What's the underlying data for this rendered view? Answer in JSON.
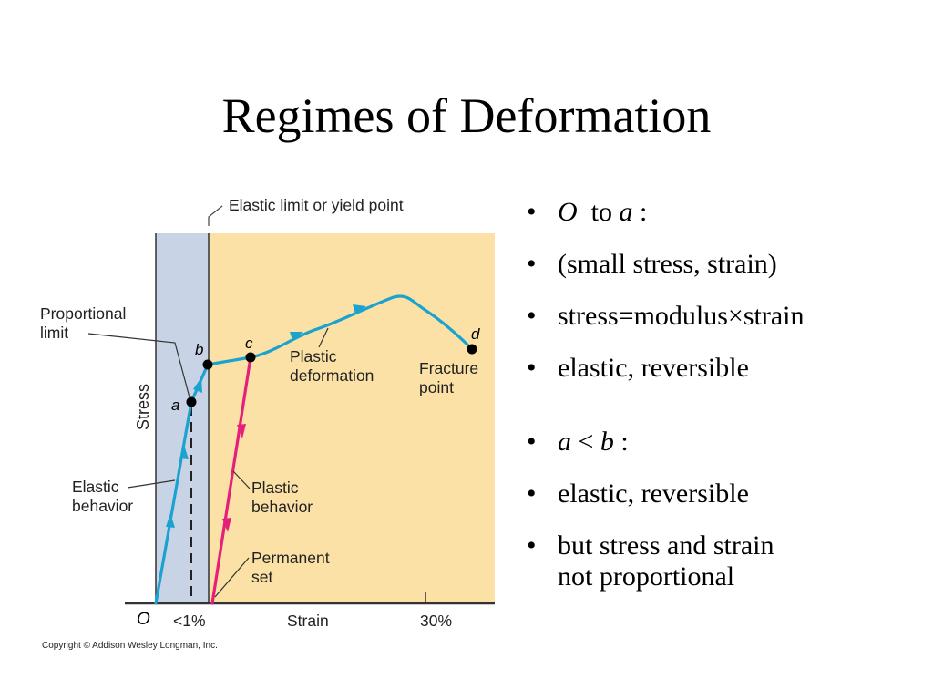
{
  "slide": {
    "title": "Regimes of Deformation",
    "copyright": "Copyright © Addison Wesley Longman, Inc."
  },
  "figure": {
    "top_label": "Elastic limit or yield point",
    "proportional_limit": [
      "Proportional",
      "limit"
    ],
    "elastic_behavior": [
      "Elastic",
      "behavior"
    ],
    "plastic_deformation": [
      "Plastic",
      "deformation"
    ],
    "fracture_point": [
      "Fracture",
      "point"
    ],
    "plastic_behavior": [
      "Plastic",
      "behavior"
    ],
    "permanent_set": [
      "Permanent",
      "set"
    ],
    "y_axis": "Stress",
    "x_axis": "Strain",
    "origin": "O",
    "tick_1pct": "<1%",
    "tick_30pct": "30%",
    "points": {
      "a": "a",
      "b": "b",
      "c": "c",
      "d": "d"
    },
    "colors": {
      "elastic_region": "#c9d3e6",
      "plastic_region": "#fbe1a6",
      "loading_curve": "#1ba3d0",
      "unloading_line": "#e5207a"
    }
  },
  "bullets": {
    "group1": {
      "item1": {
        "o": "O",
        "to": "to",
        "a": "a",
        "colon": ":"
      },
      "item2": "(small stress, strain)",
      "item3": "stress=modulus×strain",
      "item4": "elastic, reversible"
    },
    "group2": {
      "item1": {
        "a": "a",
        "lt": "<",
        "b": "b",
        "colon": ":"
      },
      "item2": "elastic, reversible",
      "item3": [
        "but stress and strain",
        "not proportional"
      ]
    }
  }
}
